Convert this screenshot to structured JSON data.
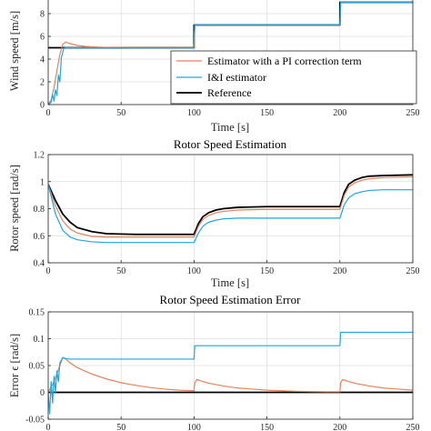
{
  "colors": {
    "pi": "#e8825a",
    "ii": "#1aa7e8",
    "ref": "#000000"
  },
  "chart_data": [
    {
      "type": "line",
      "title": "",
      "xlabel": "Time [s]",
      "ylabel": "Wind speed [m/s]",
      "xlim": [
        0,
        250
      ],
      "ylim": [
        0,
        10
      ],
      "xticks": [
        "0",
        "50",
        "100",
        "150",
        "200",
        "250"
      ],
      "yticks": [
        "0",
        "2",
        "4",
        "6",
        "8"
      ],
      "grid": true,
      "legend": "bottom-right",
      "series": [
        {
          "name": "Estimator with a PI correction term",
          "color": "pi",
          "x": [
            0,
            2,
            4,
            6,
            8,
            10,
            12,
            14,
            17,
            20,
            25,
            30,
            35,
            40,
            50,
            60,
            100,
            100.5,
            200,
            200.5,
            250
          ],
          "y": [
            0,
            0.4,
            1.5,
            3.0,
            4.4,
            5.3,
            5.5,
            5.4,
            5.3,
            5.2,
            5.12,
            5.08,
            5.05,
            5.03,
            5.01,
            5.0,
            5.0,
            7.0,
            7.0,
            9.0,
            9.0
          ]
        },
        {
          "name": "I&I estimator",
          "color": "ii",
          "x": [
            0,
            2,
            3,
            4,
            5,
            6,
            7,
            8,
            9,
            10,
            11,
            12,
            14,
            20,
            100,
            100.5,
            200,
            200.5,
            250
          ],
          "y": [
            0,
            0.2,
            0.9,
            0.3,
            1.3,
            0.8,
            2.6,
            2.0,
            4.1,
            4.6,
            5.1,
            5.0,
            5.0,
            5.0,
            5.0,
            7.0,
            7.0,
            9.0,
            9.0
          ]
        },
        {
          "name": "Reference",
          "color": "ref",
          "x": [
            0,
            100,
            100.01,
            200,
            200.01,
            250
          ],
          "y": [
            5,
            5,
            7,
            7,
            9,
            9
          ]
        }
      ]
    },
    {
      "type": "line",
      "title": "Rotor Speed Estimation",
      "xlabel": "Time [s]",
      "ylabel": "Rotor speed [rad/s]",
      "xlim": [
        0,
        250
      ],
      "ylim": [
        0.4,
        1.2
      ],
      "xticks": [
        "0",
        "50",
        "100",
        "150",
        "200",
        "250"
      ],
      "yticks": [
        "0.4",
        "0.6",
        "0.8",
        "1",
        "1.2"
      ],
      "grid": true,
      "series": [
        {
          "name": "",
          "color": "ref",
          "x": [
            0,
            5,
            10,
            15,
            20,
            30,
            40,
            60,
            100,
            103,
            106,
            110,
            115,
            120,
            130,
            150,
            200,
            203,
            206,
            210,
            215,
            220,
            230,
            250
          ],
          "y": [
            0.98,
            0.86,
            0.76,
            0.7,
            0.66,
            0.63,
            0.615,
            0.61,
            0.61,
            0.69,
            0.74,
            0.77,
            0.79,
            0.8,
            0.81,
            0.815,
            0.815,
            0.92,
            0.98,
            1.01,
            1.03,
            1.04,
            1.045,
            1.05
          ]
        },
        {
          "name": "",
          "color": "pi",
          "x": [
            0,
            5,
            10,
            15,
            20,
            30,
            40,
            60,
            100,
            103,
            106,
            110,
            115,
            120,
            130,
            150,
            200,
            203,
            206,
            210,
            215,
            220,
            230,
            250
          ],
          "y": [
            0.98,
            0.82,
            0.71,
            0.65,
            0.62,
            0.595,
            0.59,
            0.59,
            0.59,
            0.67,
            0.72,
            0.75,
            0.77,
            0.78,
            0.79,
            0.795,
            0.795,
            0.9,
            0.96,
            0.99,
            1.01,
            1.02,
            1.03,
            1.035
          ]
        },
        {
          "name": "",
          "color": "ii",
          "x": [
            0,
            5,
            10,
            15,
            20,
            30,
            40,
            60,
            100,
            103,
            106,
            110,
            115,
            120,
            130,
            150,
            200,
            203,
            206,
            210,
            215,
            220,
            230,
            250
          ],
          "y": [
            0.98,
            0.76,
            0.64,
            0.59,
            0.57,
            0.555,
            0.55,
            0.55,
            0.55,
            0.62,
            0.67,
            0.7,
            0.715,
            0.725,
            0.73,
            0.73,
            0.73,
            0.83,
            0.88,
            0.91,
            0.925,
            0.935,
            0.94,
            0.94
          ]
        }
      ]
    },
    {
      "type": "line",
      "title": "Rotor Speed Estimation Error",
      "xlabel": "",
      "ylabel": "Error ϵ [rad/s]",
      "xlim": [
        0,
        250
      ],
      "ylim": [
        -0.05,
        0.15
      ],
      "xticks": [
        "0",
        "50",
        "100",
        "150",
        "200",
        "250"
      ],
      "yticks": [
        "-0.05",
        "0",
        "0.05",
        "0.1",
        "0.15"
      ],
      "grid": true,
      "series": [
        {
          "name": "",
          "color": "ii",
          "x": [
            0,
            1,
            2,
            3,
            4,
            5,
            6,
            7,
            8,
            9,
            10,
            12,
            15,
            100,
            100.5,
            200,
            200.5,
            250
          ],
          "y": [
            0,
            -0.04,
            0.02,
            -0.02,
            0.03,
            0.0,
            0.04,
            0.02,
            0.055,
            0.06,
            0.065,
            0.063,
            0.062,
            0.062,
            0.087,
            0.087,
            0.112,
            0.112
          ]
        },
        {
          "name": "",
          "color": "pi",
          "x": [
            0,
            4,
            8,
            10,
            12,
            15,
            20,
            30,
            40,
            50,
            60,
            70,
            80,
            90,
            100,
            100.5,
            102,
            105,
            110,
            120,
            130,
            140,
            150,
            160,
            170,
            180,
            190,
            200,
            200.5,
            202,
            205,
            210,
            220,
            230,
            240,
            250
          ],
          "y": [
            0,
            0.02,
            0.05,
            0.065,
            0.062,
            0.055,
            0.046,
            0.034,
            0.025,
            0.018,
            0.013,
            0.009,
            0.006,
            0.004,
            0.003,
            0.018,
            0.024,
            0.021,
            0.017,
            0.012,
            0.008,
            0.006,
            0.004,
            0.003,
            0.002,
            0.0015,
            0.001,
            0.001,
            0.018,
            0.024,
            0.021,
            0.017,
            0.012,
            0.008,
            0.006,
            0.004
          ]
        },
        {
          "name": "",
          "color": "ref",
          "x": [
            0,
            250
          ],
          "y": [
            0,
            0
          ]
        }
      ]
    }
  ],
  "panels": [
    {
      "ylabel": "Wind speed [m/s]",
      "xlabel": "Time [s]",
      "title": "",
      "xticks": [
        "0",
        "50",
        "100",
        "150",
        "200",
        "250"
      ],
      "yticks": [
        "0",
        "2",
        "4",
        "6",
        "8"
      ]
    },
    {
      "ylabel": "Rotor speed [rad/s]",
      "xlabel": "Time [s]",
      "title": "Rotor Speed Estimation",
      "xticks": [
        "0",
        "50",
        "100",
        "150",
        "200",
        "250"
      ],
      "yticks": [
        "0.4",
        "0.6",
        "0.8",
        "1",
        "1.2"
      ]
    },
    {
      "ylabel": "Error ϵ [rad/s]",
      "xlabel": "",
      "title": "Rotor Speed Estimation Error",
      "xticks": [
        "0",
        "50",
        "100",
        "150",
        "200",
        "250"
      ],
      "yticks": [
        "-0.05",
        "0",
        "0.05",
        "0.1",
        "0.15"
      ]
    }
  ],
  "legend": [
    {
      "label": "Estimator with a PI correction term",
      "color": "pi"
    },
    {
      "label": "I&I estimator",
      "color": "ii"
    },
    {
      "label": "Reference",
      "color": "ref"
    }
  ]
}
